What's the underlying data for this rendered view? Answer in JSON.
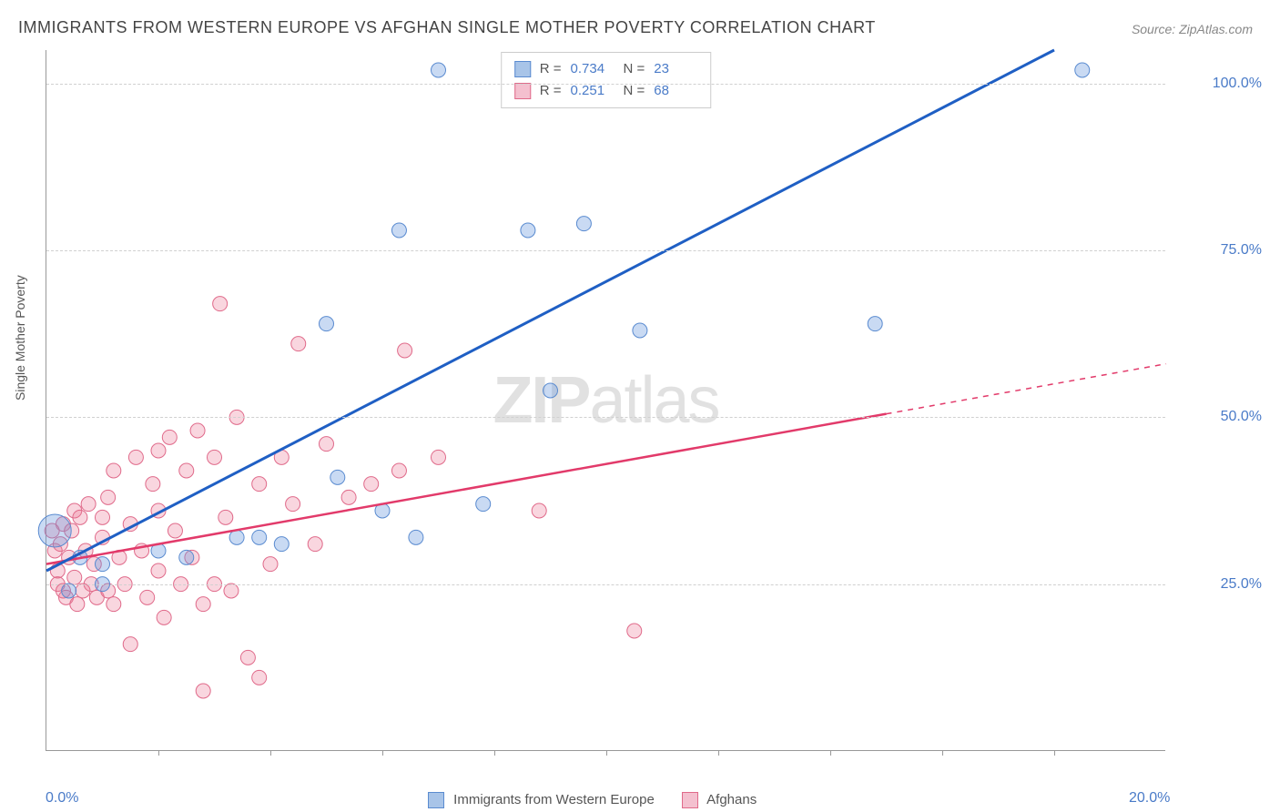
{
  "title": "IMMIGRANTS FROM WESTERN EUROPE VS AFGHAN SINGLE MOTHER POVERTY CORRELATION CHART",
  "source_label": "Source: ZipAtlas.com",
  "y_axis_label": "Single Mother Poverty",
  "watermark_bold": "ZIP",
  "watermark_light": "atlas",
  "chart": {
    "type": "scatter",
    "background_color": "#ffffff",
    "grid_color": "#d0d0d0",
    "axis_color": "#999999",
    "tick_label_color": "#4a7bc8",
    "xlim": [
      0,
      20
    ],
    "ylim": [
      0,
      105
    ],
    "x_tick_labels": [
      {
        "value": 0,
        "label": "0.0%"
      },
      {
        "value": 20,
        "label": "20.0%"
      }
    ],
    "x_minor_ticks": [
      2,
      4,
      6,
      8,
      10,
      12,
      14,
      16,
      18
    ],
    "y_grid": [
      {
        "value": 25,
        "label": "25.0%"
      },
      {
        "value": 50,
        "label": "50.0%"
      },
      {
        "value": 75,
        "label": "75.0%"
      },
      {
        "value": 100,
        "label": "100.0%"
      }
    ],
    "series_a": {
      "name": "Immigrants from Western Europe",
      "color_fill": "rgba(100,150,220,0.35)",
      "color_stroke": "#5a8bd0",
      "swatch_fill": "#a8c4e8",
      "swatch_border": "#5a8bd0",
      "trend_color": "#1f5fc4",
      "trend_width": 3,
      "R": "0.734",
      "N": "23",
      "marker_r": 8,
      "trend": {
        "x1": 0,
        "y1": 27,
        "x2": 18,
        "y2": 105
      },
      "points": [
        {
          "x": 0.15,
          "y": 33,
          "r": 18
        },
        {
          "x": 0.4,
          "y": 24
        },
        {
          "x": 0.6,
          "y": 29
        },
        {
          "x": 1.0,
          "y": 28
        },
        {
          "x": 1.0,
          "y": 25
        },
        {
          "x": 2.0,
          "y": 30
        },
        {
          "x": 2.5,
          "y": 29
        },
        {
          "x": 3.4,
          "y": 32
        },
        {
          "x": 3.8,
          "y": 32
        },
        {
          "x": 4.2,
          "y": 31
        },
        {
          "x": 5.0,
          "y": 64
        },
        {
          "x": 5.2,
          "y": 41
        },
        {
          "x": 6.0,
          "y": 36
        },
        {
          "x": 6.3,
          "y": 78
        },
        {
          "x": 6.6,
          "y": 32
        },
        {
          "x": 7.0,
          "y": 102
        },
        {
          "x": 7.8,
          "y": 37
        },
        {
          "x": 8.6,
          "y": 78
        },
        {
          "x": 9.0,
          "y": 54
        },
        {
          "x": 9.6,
          "y": 79
        },
        {
          "x": 10.6,
          "y": 63
        },
        {
          "x": 14.8,
          "y": 64
        },
        {
          "x": 18.5,
          "y": 102
        }
      ]
    },
    "series_b": {
      "name": "Afghans",
      "color_fill": "rgba(235,120,150,0.30)",
      "color_stroke": "#e06a8a",
      "swatch_fill": "#f4c0cf",
      "swatch_border": "#e06a8a",
      "trend_color": "#e23a6a",
      "trend_width": 2.5,
      "trend_dash_after": 15,
      "R": "0.251",
      "N": "68",
      "marker_r": 8,
      "trend": {
        "x1": 0,
        "y1": 28,
        "x2": 20,
        "y2": 58
      },
      "points": [
        {
          "x": 0.1,
          "y": 33
        },
        {
          "x": 0.15,
          "y": 30
        },
        {
          "x": 0.2,
          "y": 27
        },
        {
          "x": 0.2,
          "y": 25
        },
        {
          "x": 0.25,
          "y": 31
        },
        {
          "x": 0.3,
          "y": 34
        },
        {
          "x": 0.3,
          "y": 24
        },
        {
          "x": 0.35,
          "y": 23
        },
        {
          "x": 0.4,
          "y": 29
        },
        {
          "x": 0.45,
          "y": 33
        },
        {
          "x": 0.5,
          "y": 36
        },
        {
          "x": 0.5,
          "y": 26
        },
        {
          "x": 0.55,
          "y": 22
        },
        {
          "x": 0.6,
          "y": 35
        },
        {
          "x": 0.65,
          "y": 24
        },
        {
          "x": 0.7,
          "y": 30
        },
        {
          "x": 0.75,
          "y": 37
        },
        {
          "x": 0.8,
          "y": 25
        },
        {
          "x": 0.85,
          "y": 28
        },
        {
          "x": 0.9,
          "y": 23
        },
        {
          "x": 1.0,
          "y": 32
        },
        {
          "x": 1.0,
          "y": 35
        },
        {
          "x": 1.1,
          "y": 24
        },
        {
          "x": 1.1,
          "y": 38
        },
        {
          "x": 1.2,
          "y": 42
        },
        {
          "x": 1.2,
          "y": 22
        },
        {
          "x": 1.3,
          "y": 29
        },
        {
          "x": 1.4,
          "y": 25
        },
        {
          "x": 1.5,
          "y": 16
        },
        {
          "x": 1.5,
          "y": 34
        },
        {
          "x": 1.6,
          "y": 44
        },
        {
          "x": 1.7,
          "y": 30
        },
        {
          "x": 1.8,
          "y": 23
        },
        {
          "x": 1.9,
          "y": 40
        },
        {
          "x": 2.0,
          "y": 27
        },
        {
          "x": 2.0,
          "y": 36
        },
        {
          "x": 2.0,
          "y": 45
        },
        {
          "x": 2.1,
          "y": 20
        },
        {
          "x": 2.2,
          "y": 47
        },
        {
          "x": 2.3,
          "y": 33
        },
        {
          "x": 2.4,
          "y": 25
        },
        {
          "x": 2.5,
          "y": 42
        },
        {
          "x": 2.6,
          "y": 29
        },
        {
          "x": 2.7,
          "y": 48
        },
        {
          "x": 2.8,
          "y": 22
        },
        {
          "x": 2.8,
          "y": 9
        },
        {
          "x": 3.0,
          "y": 44
        },
        {
          "x": 3.0,
          "y": 25
        },
        {
          "x": 3.1,
          "y": 67
        },
        {
          "x": 3.2,
          "y": 35
        },
        {
          "x": 3.3,
          "y": 24
        },
        {
          "x": 3.4,
          "y": 50
        },
        {
          "x": 3.6,
          "y": 14
        },
        {
          "x": 3.8,
          "y": 11
        },
        {
          "x": 3.8,
          "y": 40
        },
        {
          "x": 4.0,
          "y": 28
        },
        {
          "x": 4.2,
          "y": 44
        },
        {
          "x": 4.4,
          "y": 37
        },
        {
          "x": 4.5,
          "y": 61
        },
        {
          "x": 4.8,
          "y": 31
        },
        {
          "x": 5.0,
          "y": 46
        },
        {
          "x": 5.4,
          "y": 38
        },
        {
          "x": 5.8,
          "y": 40
        },
        {
          "x": 6.3,
          "y": 42
        },
        {
          "x": 6.4,
          "y": 60
        },
        {
          "x": 7.0,
          "y": 44
        },
        {
          "x": 8.8,
          "y": 36
        },
        {
          "x": 10.5,
          "y": 18
        }
      ]
    }
  },
  "legend_r_label": "R =",
  "legend_n_label": "N ="
}
